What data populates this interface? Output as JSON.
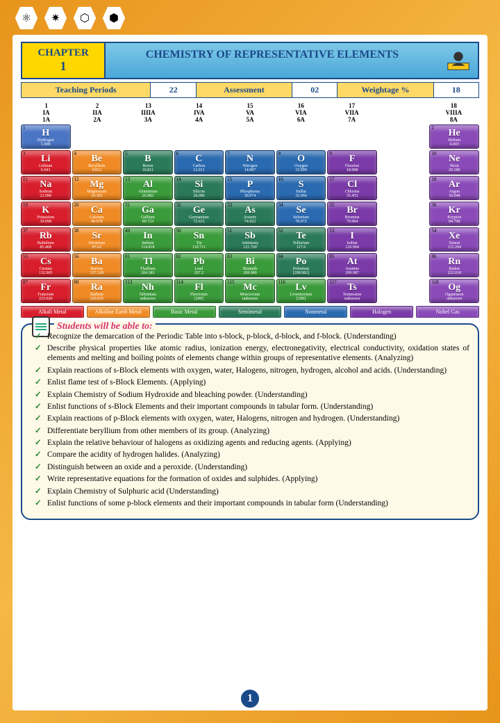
{
  "chapter": {
    "label": "CHAPTER",
    "number": "1"
  },
  "title": "CHEMISTRY OF REPRESENTATIVE ELEMENTS",
  "info": {
    "teaching_label": "Teaching Periods",
    "teaching_val": "22",
    "assessment_label": "Assessment",
    "assessment_val": "02",
    "weightage_label": "Weightage %",
    "weightage_val": "18"
  },
  "groups": [
    {
      "n": "1",
      "r": "IA",
      "a": "1A"
    },
    {
      "n": "2",
      "r": "IIA",
      "a": "2A"
    },
    {
      "n": "13",
      "r": "IIIIA",
      "a": "3A"
    },
    {
      "n": "14",
      "r": "IVA",
      "a": "4A"
    },
    {
      "n": "15",
      "r": "VA",
      "a": "5A"
    },
    {
      "n": "16",
      "r": "VIA",
      "a": "6A"
    },
    {
      "n": "17",
      "r": "VIIA",
      "a": "7A"
    },
    {
      "n": "18",
      "r": "VIIIA",
      "a": "8A"
    }
  ],
  "colors": {
    "alkali": "#d81e2c",
    "alkaline": "#f08a24",
    "basic": "#3a9b3a",
    "semimetal": "#2a7a5a",
    "nonmetal": "#2a6ab0",
    "halogen": "#7a3aa8",
    "noble": "#8a4ab8",
    "hydrogen": "#4a74c4"
  },
  "rows": [
    [
      {
        "z": "1",
        "s": "H",
        "nm": "Hydrogen",
        "m": "1.008",
        "c": "hydrogen"
      },
      null,
      null,
      null,
      null,
      null,
      null,
      null,
      {
        "z": "2",
        "s": "He",
        "nm": "Helium",
        "m": "4.003",
        "c": "noble"
      }
    ],
    [
      {
        "z": "3",
        "s": "Li",
        "nm": "Lithium",
        "m": "6.941",
        "c": "alkali"
      },
      {
        "z": "4",
        "s": "Be",
        "nm": "Beryllium",
        "m": "9.012",
        "c": "alkaline"
      },
      {
        "z": "5",
        "s": "B",
        "nm": "Boron",
        "m": "10.811",
        "c": "semimetal"
      },
      {
        "z": "6",
        "s": "C",
        "nm": "Carbon",
        "m": "12.011",
        "c": "nonmetal"
      },
      {
        "z": "7",
        "s": "N",
        "nm": "Nitrogen",
        "m": "14.007",
        "c": "nonmetal"
      },
      {
        "z": "8",
        "s": "O",
        "nm": "Oxygen",
        "m": "15.999",
        "c": "nonmetal"
      },
      {
        "z": "9",
        "s": "F",
        "nm": "Fluorine",
        "m": "18.998",
        "c": "halogen"
      },
      null,
      {
        "z": "10",
        "s": "Ne",
        "nm": "Neon",
        "m": "20.180",
        "c": "noble"
      }
    ],
    [
      {
        "z": "11",
        "s": "Na",
        "nm": "Sodium",
        "m": "22.990",
        "c": "alkali"
      },
      {
        "z": "12",
        "s": "Mg",
        "nm": "Magnesium",
        "m": "24.305",
        "c": "alkaline"
      },
      {
        "z": "13",
        "s": "Al",
        "nm": "Aluminium",
        "m": "26.982",
        "c": "basic"
      },
      {
        "z": "14",
        "s": "Si",
        "nm": "Silicon",
        "m": "28.086",
        "c": "semimetal"
      },
      {
        "z": "15",
        "s": "P",
        "nm": "Phosphorus",
        "m": "30.974",
        "c": "nonmetal"
      },
      {
        "z": "16",
        "s": "S",
        "nm": "Sulfur",
        "m": "32.066",
        "c": "nonmetal"
      },
      {
        "z": "17",
        "s": "Cl",
        "nm": "Chlorine",
        "m": "35.453",
        "c": "halogen"
      },
      null,
      {
        "z": "18",
        "s": "Ar",
        "nm": "Argon",
        "m": "39.948",
        "c": "noble"
      }
    ],
    [
      {
        "z": "19",
        "s": "K",
        "nm": "Potassium",
        "m": "39.098",
        "c": "alkali"
      },
      {
        "z": "20",
        "s": "Ca",
        "nm": "Calcium",
        "m": "40.078",
        "c": "alkaline"
      },
      {
        "z": "31",
        "s": "Ga",
        "nm": "Gallium",
        "m": "69.723",
        "c": "basic"
      },
      {
        "z": "32",
        "s": "Ge",
        "nm": "Germanium",
        "m": "72.631",
        "c": "semimetal"
      },
      {
        "z": "33",
        "s": "As",
        "nm": "Arsenic",
        "m": "74.922",
        "c": "semimetal"
      },
      {
        "z": "34",
        "s": "Se",
        "nm": "Selenium",
        "m": "78.972",
        "c": "nonmetal"
      },
      {
        "z": "35",
        "s": "Br",
        "nm": "Bromine",
        "m": "79.904",
        "c": "halogen"
      },
      null,
      {
        "z": "36",
        "s": "Kr",
        "nm": "Krypton",
        "m": "84.798",
        "c": "noble"
      }
    ],
    [
      {
        "z": "37",
        "s": "Rb",
        "nm": "Rubidium",
        "m": "85.468",
        "c": "alkali"
      },
      {
        "z": "38",
        "s": "Sr",
        "nm": "Strontium",
        "m": "87.62",
        "c": "alkaline"
      },
      {
        "z": "49",
        "s": "In",
        "nm": "Indium",
        "m": "114.818",
        "c": "basic"
      },
      {
        "z": "50",
        "s": "Sn",
        "nm": "Tin",
        "m": "118.711",
        "c": "basic"
      },
      {
        "z": "51",
        "s": "Sb",
        "nm": "Antimony",
        "m": "121.760",
        "c": "semimetal"
      },
      {
        "z": "52",
        "s": "Te",
        "nm": "Tellurium",
        "m": "127.6",
        "c": "semimetal"
      },
      {
        "z": "53",
        "s": "I",
        "nm": "Iodine",
        "m": "126.904",
        "c": "halogen"
      },
      null,
      {
        "z": "54",
        "s": "Xe",
        "nm": "Xenon",
        "m": "131.294",
        "c": "noble"
      }
    ],
    [
      {
        "z": "55",
        "s": "Cs",
        "nm": "Cesium",
        "m": "132.905",
        "c": "alkali"
      },
      {
        "z": "56",
        "s": "Ba",
        "nm": "Barium",
        "m": "137.328",
        "c": "alkaline"
      },
      {
        "z": "81",
        "s": "Tl",
        "nm": "Thallium",
        "m": "204.383",
        "c": "basic"
      },
      {
        "z": "82",
        "s": "Pb",
        "nm": "Lead",
        "m": "207.2",
        "c": "basic"
      },
      {
        "z": "83",
        "s": "Bi",
        "nm": "Bismuth",
        "m": "208.980",
        "c": "basic"
      },
      {
        "z": "84",
        "s": "Po",
        "nm": "Polonium",
        "m": "[208.982]",
        "c": "semimetal"
      },
      {
        "z": "85",
        "s": "At",
        "nm": "Astatine",
        "m": "209.987",
        "c": "halogen"
      },
      null,
      {
        "z": "86",
        "s": "Rn",
        "nm": "Radon",
        "m": "222.018",
        "c": "noble"
      }
    ],
    [
      {
        "z": "87",
        "s": "Fr",
        "nm": "Francium",
        "m": "223.020",
        "c": "alkali"
      },
      {
        "z": "88",
        "s": "Ra",
        "nm": "Radium",
        "m": "226.025",
        "c": "alkaline"
      },
      {
        "z": "113",
        "s": "Nh",
        "nm": "Nihonium",
        "m": "unknown",
        "c": "basic"
      },
      {
        "z": "114",
        "s": "Fl",
        "nm": "Flerovium",
        "m": "[289]",
        "c": "basic"
      },
      {
        "z": "115",
        "s": "Mc",
        "nm": "Moscovium",
        "m": "unknown",
        "c": "basic"
      },
      {
        "z": "116",
        "s": "Lv",
        "nm": "Livermorium",
        "m": "[298]",
        "c": "basic"
      },
      {
        "z": "117",
        "s": "Ts",
        "nm": "Tennessine",
        "m": "unknown",
        "c": "halogen"
      },
      null,
      {
        "z": "118",
        "s": "Og",
        "nm": "Oganesson",
        "m": "unknown",
        "c": "noble"
      }
    ]
  ],
  "legend": [
    {
      "t": "Alkali Metal",
      "c": "alkali"
    },
    {
      "t": "Alkaline Earth Metal",
      "c": "alkaline"
    },
    {
      "t": "Basic Metal",
      "c": "basic"
    },
    {
      "t": "Semimetal",
      "c": "semimetal"
    },
    {
      "t": "Nonmetal",
      "c": "nonmetal"
    },
    {
      "t": "Halogen",
      "c": "halogen"
    },
    {
      "t": "Nobel Gas",
      "c": "noble"
    }
  ],
  "objectives": {
    "title": "Students will be able to:",
    "items": [
      "Recognize the demarcation of the Periodic Table into s-block, p-block, d-block, and f-block. (Understanding)",
      "Describe physical properties like atomic radius, ionization energy, electronegativity, electrical conductivity, oxidation states of elements and melting and boiling points of elements change within groups of representative elements. (Analyzing)",
      "Explain reactions of s-Block elements with oxygen, water, Halogens, nitrogen, hydrogen, alcohol and acids. (Understanding)",
      "Enlist flame test of s-Block Elements. (Applying)",
      "Explain Chemistry of Sodium Hydroxide and bleaching powder. (Understanding)",
      "Enlist functions of s-Block Elements and their important compounds in tabular form. (Understanding)",
      "Explain reactions of p-Block elements with oxygen, water, Halogens, nitrogen and hydrogen. (Understanding)",
      "Differentiate beryllium from other members of its group. (Analyzing)",
      "Explain the relative behaviour of halogens as oxidizing agents and reducing agents. (Applying)",
      "Compare the acidity of hydrogen halides. (Analyzing)",
      "Distinguish between an oxide and a peroxide. (Understanding)",
      "Write representative equations for the formation of oxides and sulphides. (Applying)",
      "Explain Chemistry of Sulphuric acid (Understanding)",
      "Enlist functions of some p-block elements and their important compounds in tabular form (Understanding)"
    ]
  },
  "page_number": "1"
}
